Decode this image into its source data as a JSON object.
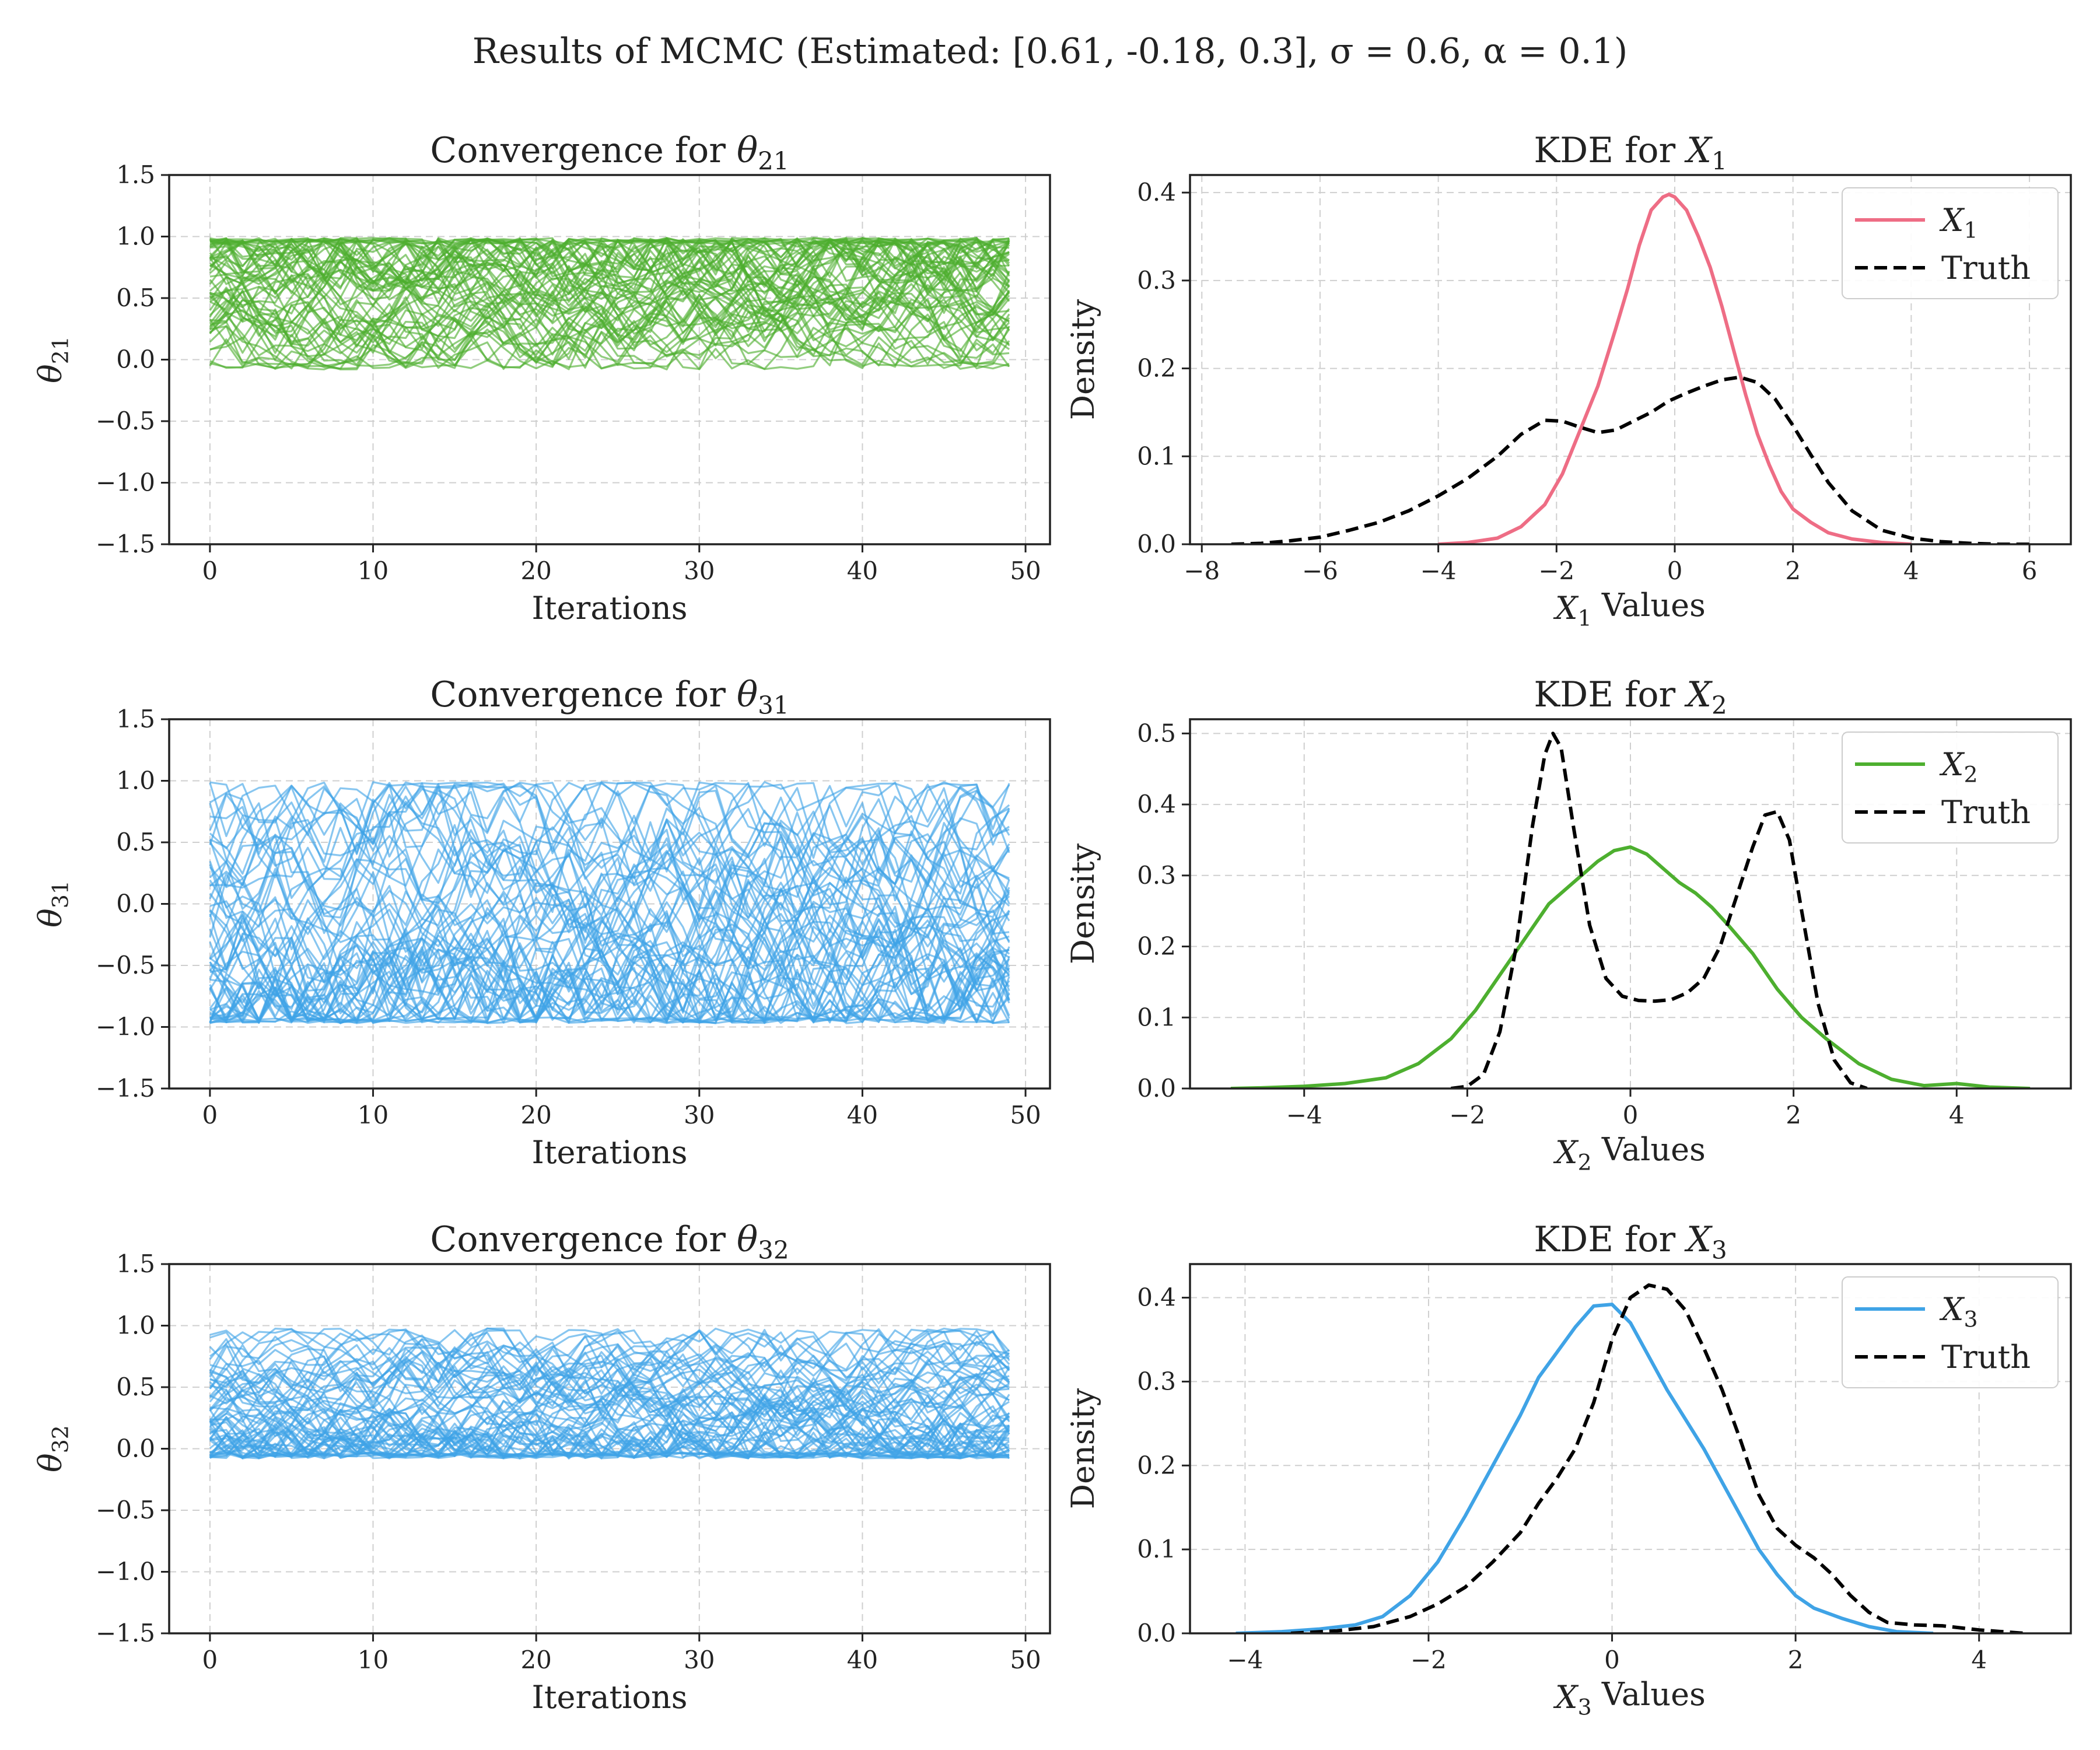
{
  "figure": {
    "suptitle": "Results of MCMC (Estimated: [0.61, -0.18, 0.3], σ = 0.6, α = 0.1)"
  },
  "colors": {
    "trace_21": "#4daf2f",
    "trace_31": "#3fa3e6",
    "trace_32": "#3fa3e6",
    "kde_x1": "#ee6d85",
    "kde_x2": "#4daf2f",
    "kde_x3": "#3fa3e6",
    "truth": "#000000"
  },
  "chart_data": [
    {
      "id": "conv21",
      "type": "line",
      "title_text": "Convergence for ",
      "title_sym": "θ",
      "title_sub": "21",
      "xlabel": "Iterations",
      "ylabel_sym": "θ",
      "ylabel_sub": "21",
      "xlim": [
        -2.5,
        51.5
      ],
      "ylim": [
        -1.5,
        1.5
      ],
      "xticks": [
        0,
        10,
        20,
        30,
        40,
        50
      ],
      "yticks": [
        -1.5,
        -1.0,
        -0.5,
        0.0,
        0.5,
        1.0,
        1.5
      ],
      "grid": true,
      "legend": "none",
      "chains": {
        "count": 60,
        "iterations": 50,
        "range": [
          -0.08,
          0.99
        ],
        "center": 0.61,
        "spread": 0.28,
        "trend_to": 0.7
      }
    },
    {
      "id": "kde1",
      "type": "line",
      "title_text": "KDE for ",
      "title_sym": "X",
      "title_sub": "1",
      "xlabel_sym": "X",
      "xlabel_sub": "1",
      "xlabel_text": " Values",
      "ylabel": "Density",
      "xlim": [
        -8.2,
        6.7
      ],
      "ylim": [
        0,
        0.42
      ],
      "xticks": [
        -8,
        -6,
        -4,
        -2,
        0,
        2,
        4,
        6
      ],
      "yticks": [
        0.0,
        0.1,
        0.2,
        0.3,
        0.4
      ],
      "grid": true,
      "legend": "top-right",
      "series": [
        {
          "name_sym": "X",
          "name_sub": "1",
          "style": "solid",
          "x": [
            -4.0,
            -3.5,
            -3.0,
            -2.6,
            -2.2,
            -1.9,
            -1.6,
            -1.3,
            -1.0,
            -0.8,
            -0.6,
            -0.4,
            -0.2,
            -0.1,
            0.0,
            0.2,
            0.4,
            0.6,
            0.8,
            1.0,
            1.2,
            1.4,
            1.6,
            1.8,
            2.0,
            2.3,
            2.6,
            3.0,
            3.5,
            4.0
          ],
          "y": [
            0.0,
            0.002,
            0.007,
            0.02,
            0.045,
            0.08,
            0.13,
            0.18,
            0.245,
            0.29,
            0.34,
            0.38,
            0.395,
            0.398,
            0.395,
            0.38,
            0.35,
            0.315,
            0.27,
            0.22,
            0.17,
            0.125,
            0.09,
            0.06,
            0.04,
            0.025,
            0.013,
            0.006,
            0.002,
            0.0
          ]
        },
        {
          "name": "Truth",
          "style": "dashed",
          "x": [
            -7.5,
            -7.0,
            -6.5,
            -6.0,
            -5.5,
            -5.0,
            -4.5,
            -4.0,
            -3.5,
            -3.0,
            -2.6,
            -2.2,
            -1.9,
            -1.6,
            -1.3,
            -1.0,
            -0.7,
            -0.4,
            -0.1,
            0.2,
            0.5,
            0.8,
            1.1,
            1.4,
            1.7,
            2.0,
            2.3,
            2.6,
            3.0,
            3.5,
            4.0,
            4.5,
            5.0,
            5.5,
            6.0
          ],
          "y": [
            0.0,
            0.001,
            0.004,
            0.008,
            0.016,
            0.025,
            0.038,
            0.055,
            0.075,
            0.1,
            0.125,
            0.141,
            0.14,
            0.133,
            0.127,
            0.13,
            0.14,
            0.15,
            0.163,
            0.172,
            0.18,
            0.187,
            0.19,
            0.184,
            0.165,
            0.135,
            0.102,
            0.07,
            0.038,
            0.016,
            0.007,
            0.003,
            0.001,
            0.0,
            0.0
          ]
        }
      ]
    },
    {
      "id": "conv31",
      "type": "line",
      "title_text": "Convergence for ",
      "title_sym": "θ",
      "title_sub": "31",
      "xlabel": "Iterations",
      "ylabel_sym": "θ",
      "ylabel_sub": "31",
      "xlim": [
        -2.5,
        51.5
      ],
      "ylim": [
        -1.5,
        1.5
      ],
      "xticks": [
        0,
        10,
        20,
        30,
        40,
        50
      ],
      "yticks": [
        -1.5,
        -1.0,
        -0.5,
        0.0,
        0.5,
        1.0,
        1.5
      ],
      "grid": true,
      "legend": "none",
      "chains": {
        "count": 60,
        "iterations": 50,
        "range": [
          -0.97,
          0.99
        ],
        "center": -0.18,
        "spread": 0.45,
        "trend_to": -0.18
      }
    },
    {
      "id": "kde2",
      "type": "line",
      "title_text": "KDE for ",
      "title_sym": "X",
      "title_sub": "2",
      "xlabel_sym": "X",
      "xlabel_sub": "2",
      "xlabel_text": " Values",
      "ylabel": "Density",
      "xlim": [
        -5.4,
        5.4
      ],
      "ylim": [
        0,
        0.52
      ],
      "xticks": [
        -4,
        -2,
        0,
        2,
        4
      ],
      "yticks": [
        0.0,
        0.1,
        0.2,
        0.3,
        0.4,
        0.5
      ],
      "grid": true,
      "legend": "top-right",
      "series": [
        {
          "name_sym": "X",
          "name_sub": "2",
          "style": "solid",
          "x": [
            -4.9,
            -4.5,
            -4.0,
            -3.5,
            -3.0,
            -2.6,
            -2.2,
            -1.9,
            -1.6,
            -1.3,
            -1.0,
            -0.7,
            -0.4,
            -0.2,
            0.0,
            0.2,
            0.4,
            0.6,
            0.8,
            1.0,
            1.2,
            1.5,
            1.8,
            2.1,
            2.4,
            2.8,
            3.2,
            3.6,
            4.0,
            4.4,
            4.9
          ],
          "y": [
            0.0,
            0.001,
            0.003,
            0.007,
            0.015,
            0.035,
            0.07,
            0.11,
            0.16,
            0.21,
            0.26,
            0.29,
            0.32,
            0.335,
            0.34,
            0.33,
            0.31,
            0.29,
            0.275,
            0.255,
            0.23,
            0.19,
            0.14,
            0.1,
            0.07,
            0.035,
            0.013,
            0.004,
            0.007,
            0.002,
            0.0
          ]
        },
        {
          "name": "Truth",
          "style": "dashed",
          "x": [
            -2.2,
            -2.0,
            -1.8,
            -1.6,
            -1.4,
            -1.2,
            -1.05,
            -0.95,
            -0.85,
            -0.7,
            -0.5,
            -0.3,
            -0.1,
            0.1,
            0.3,
            0.5,
            0.7,
            0.9,
            1.1,
            1.3,
            1.5,
            1.65,
            1.8,
            1.95,
            2.1,
            2.3,
            2.5,
            2.7,
            2.9
          ],
          "y": [
            0.0,
            0.003,
            0.02,
            0.08,
            0.2,
            0.37,
            0.47,
            0.5,
            0.48,
            0.37,
            0.23,
            0.155,
            0.13,
            0.124,
            0.123,
            0.125,
            0.135,
            0.155,
            0.2,
            0.27,
            0.34,
            0.385,
            0.39,
            0.35,
            0.25,
            0.12,
            0.04,
            0.008,
            0.0
          ]
        }
      ]
    },
    {
      "id": "conv32",
      "type": "line",
      "title_text": "Convergence for ",
      "title_sym": "θ",
      "title_sub": "32",
      "xlabel": "Iterations",
      "ylabel_sym": "θ",
      "ylabel_sub": "32",
      "xlim": [
        -2.5,
        51.5
      ],
      "ylim": [
        -1.5,
        1.5
      ],
      "xticks": [
        0,
        10,
        20,
        30,
        40,
        50
      ],
      "yticks": [
        -1.5,
        -1.0,
        -0.5,
        0.0,
        0.5,
        1.0,
        1.5
      ],
      "grid": true,
      "legend": "none",
      "chains": {
        "count": 60,
        "iterations": 50,
        "range": [
          -0.08,
          0.98
        ],
        "center": 0.3,
        "spread": 0.25,
        "trend_to": 0.3
      }
    },
    {
      "id": "kde3",
      "type": "line",
      "title_text": "KDE for ",
      "title_sym": "X",
      "title_sub": "3",
      "xlabel_sym": "X",
      "xlabel_sub": "3",
      "xlabel_text": " Values",
      "ylabel": "Density",
      "xlim": [
        -4.6,
        5.0
      ],
      "ylim": [
        0,
        0.44
      ],
      "xticks": [
        -4,
        -2,
        0,
        2,
        4
      ],
      "yticks": [
        0.0,
        0.1,
        0.2,
        0.3,
        0.4
      ],
      "grid": true,
      "legend": "top-right",
      "series": [
        {
          "name_sym": "X",
          "name_sub": "3",
          "style": "solid",
          "x": [
            -4.1,
            -3.6,
            -3.2,
            -2.8,
            -2.5,
            -2.2,
            -1.9,
            -1.6,
            -1.3,
            -1.0,
            -0.8,
            -0.6,
            -0.4,
            -0.2,
            0.0,
            0.2,
            0.4,
            0.6,
            0.8,
            1.0,
            1.2,
            1.4,
            1.6,
            1.8,
            2.0,
            2.2,
            2.5,
            2.8,
            3.1,
            3.5
          ],
          "y": [
            0.0,
            0.002,
            0.005,
            0.01,
            0.02,
            0.045,
            0.085,
            0.14,
            0.2,
            0.26,
            0.305,
            0.335,
            0.365,
            0.39,
            0.392,
            0.37,
            0.33,
            0.29,
            0.255,
            0.22,
            0.18,
            0.14,
            0.1,
            0.07,
            0.045,
            0.03,
            0.018,
            0.008,
            0.002,
            0.0
          ]
        },
        {
          "name": "Truth",
          "style": "dashed",
          "x": [
            -3.5,
            -3.0,
            -2.6,
            -2.2,
            -1.9,
            -1.6,
            -1.3,
            -1.0,
            -0.8,
            -0.6,
            -0.4,
            -0.2,
            0.0,
            0.2,
            0.4,
            0.6,
            0.8,
            1.0,
            1.2,
            1.4,
            1.6,
            1.8,
            2.0,
            2.2,
            2.4,
            2.6,
            2.8,
            3.0,
            3.3,
            3.6,
            4.0,
            4.5
          ],
          "y": [
            0.0,
            0.003,
            0.008,
            0.02,
            0.035,
            0.055,
            0.085,
            0.12,
            0.155,
            0.185,
            0.22,
            0.275,
            0.35,
            0.4,
            0.415,
            0.41,
            0.385,
            0.34,
            0.29,
            0.23,
            0.165,
            0.125,
            0.105,
            0.09,
            0.07,
            0.045,
            0.025,
            0.013,
            0.01,
            0.009,
            0.004,
            0.0
          ]
        }
      ]
    }
  ]
}
